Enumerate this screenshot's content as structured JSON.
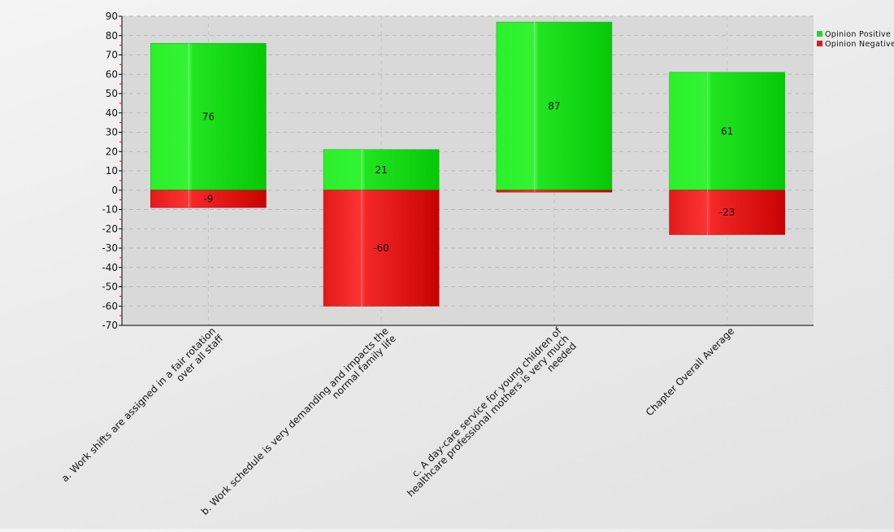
{
  "chart_data": {
    "type": "bar",
    "stacked": "diverging",
    "categories": [
      "a. Work shifts are assigned in a fair rotation over all staff",
      "b. Work schedule is very demanding and impacts the normal family life",
      "c. A day-care service for young children of healthcare professional mothers is very much needed",
      "Chapter Overall Average"
    ],
    "category_label_lines": [
      [
        "a. Work shifts are assigned in a fair rotation",
        "over all staff"
      ],
      [
        "b. Work schedule is very demanding and impacts the",
        "normal family life"
      ],
      [
        "c. A day-care service for young children of",
        "healthcare professional mothers is very much",
        "needed"
      ],
      [
        "Chapter Overall Average"
      ]
    ],
    "series": [
      {
        "name": "Opinion Positive",
        "values": [
          76,
          21,
          87,
          61
        ],
        "labels": [
          "76",
          "21",
          "87",
          "61"
        ]
      },
      {
        "name": "Opinion Negative",
        "values": [
          -9,
          -60,
          -1,
          -23
        ],
        "labels": [
          "-9",
          "-60",
          "",
          "-23"
        ]
      }
    ],
    "ylim": [
      -70,
      90
    ],
    "yticks": [
      90,
      80,
      70,
      60,
      50,
      40,
      30,
      20,
      10,
      0,
      -10,
      -20,
      -30,
      -40,
      -50,
      -60,
      -70
    ],
    "grid": true,
    "legend_position": "top-right",
    "colors": {
      "positive": "#1edc1e",
      "negative": "#e81818",
      "plot_background": "#d9d9d9",
      "grid": "#b9b9b9"
    }
  }
}
